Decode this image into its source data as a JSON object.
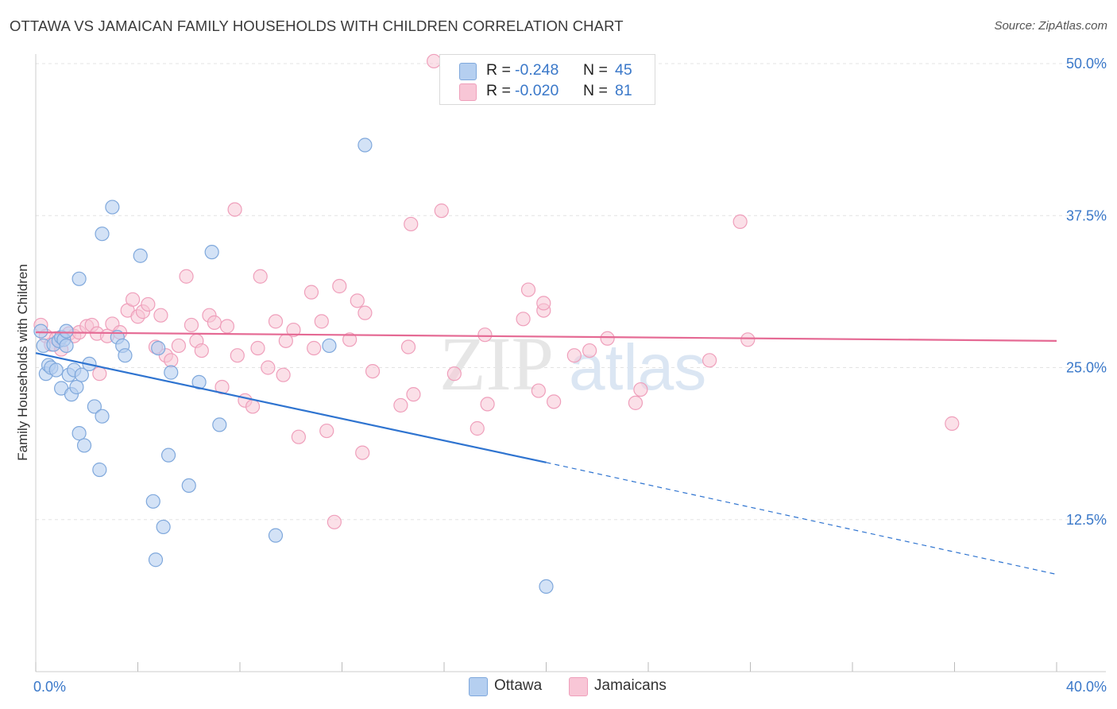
{
  "title": "OTTAWA VS JAMAICAN FAMILY HOUSEHOLDS WITH CHILDREN CORRELATION CHART",
  "source": "Source: ZipAtlas.com",
  "watermark": {
    "zip": "ZIP",
    "atlas": "atlas"
  },
  "legend_top": {
    "rows": [
      {
        "r_label": "R =",
        "r_value": "-0.248",
        "n_label": "N =",
        "n_value": "45"
      },
      {
        "r_label": "R =",
        "r_value": "-0.020",
        "n_label": "N =",
        "n_value": "81"
      }
    ]
  },
  "legend_bottom": {
    "items": [
      {
        "label": "Ottawa"
      },
      {
        "label": "Jamaicans"
      }
    ]
  },
  "colors": {
    "ottawa_fill": "#b5cff0",
    "ottawa_stroke": "#7fa8dc",
    "ottawa_line": "#2f74d0",
    "jamaican_fill": "#f8c6d6",
    "jamaican_stroke": "#ef9fbb",
    "jamaican_line": "#e56a94",
    "axis_text": "#3a78c9",
    "grid": "#e3e3e3"
  },
  "chart_data": {
    "type": "scatter",
    "title": "OTTAWA VS JAMAICAN FAMILY HOUSEHOLDS WITH CHILDREN CORRELATION CHART",
    "xlabel": "",
    "ylabel": "Family Households with Children",
    "xlim": [
      0,
      40
    ],
    "ylim": [
      0,
      50
    ],
    "x_tick_labels": [
      "0.0%",
      "40.0%"
    ],
    "y_ticks": [
      12.5,
      25.0,
      37.5,
      50.0
    ],
    "y_tick_labels": [
      "12.5%",
      "25.0%",
      "37.5%",
      "50.0%"
    ],
    "grid": true,
    "legend_position": "top-center",
    "series": [
      {
        "name": "Ottawa",
        "R": -0.248,
        "N": 45,
        "trend": {
          "x0": 0,
          "y0": 26.2,
          "x1": 20.0,
          "y1": 17.2,
          "dashed_to_x": 40,
          "dashed_to_y": 8.0
        },
        "points": [
          [
            0.2,
            28.0
          ],
          [
            0.3,
            26.8
          ],
          [
            0.4,
            24.5
          ],
          [
            0.5,
            25.2
          ],
          [
            0.6,
            25.0
          ],
          [
            0.7,
            26.9
          ],
          [
            0.8,
            24.8
          ],
          [
            0.9,
            27.2
          ],
          [
            1.0,
            23.3
          ],
          [
            1.0,
            27.5
          ],
          [
            1.1,
            27.3
          ],
          [
            1.2,
            28.0
          ],
          [
            1.2,
            26.8
          ],
          [
            1.3,
            24.4
          ],
          [
            1.4,
            22.8
          ],
          [
            1.5,
            24.8
          ],
          [
            1.6,
            23.4
          ],
          [
            1.7,
            19.6
          ],
          [
            1.8,
            24.4
          ],
          [
            1.9,
            18.6
          ],
          [
            2.1,
            25.3
          ],
          [
            2.3,
            21.8
          ],
          [
            2.5,
            16.6
          ],
          [
            2.6,
            21.0
          ],
          [
            1.7,
            32.3
          ],
          [
            2.6,
            36.0
          ],
          [
            3.0,
            38.2
          ],
          [
            3.2,
            27.5
          ],
          [
            3.4,
            26.8
          ],
          [
            3.5,
            26.0
          ],
          [
            4.1,
            34.2
          ],
          [
            4.6,
            14.0
          ],
          [
            4.7,
            9.2
          ],
          [
            4.8,
            26.6
          ],
          [
            5.0,
            11.9
          ],
          [
            5.2,
            17.8
          ],
          [
            5.3,
            24.6
          ],
          [
            6.0,
            15.3
          ],
          [
            6.4,
            23.8
          ],
          [
            6.9,
            34.5
          ],
          [
            7.2,
            20.3
          ],
          [
            9.4,
            11.2
          ],
          [
            11.5,
            26.8
          ],
          [
            12.9,
            43.3
          ],
          [
            20.0,
            7.0
          ]
        ]
      },
      {
        "name": "Jamaicans",
        "R": -0.02,
        "N": 81,
        "trend": {
          "x0": 0,
          "y0": 27.9,
          "x1": 40,
          "y1": 27.2
        },
        "points": [
          [
            0.2,
            28.5
          ],
          [
            0.4,
            27.6
          ],
          [
            0.6,
            26.9
          ],
          [
            0.8,
            27.4
          ],
          [
            1.0,
            26.5
          ],
          [
            1.3,
            27.8
          ],
          [
            1.5,
            27.6
          ],
          [
            1.7,
            27.9
          ],
          [
            2.0,
            28.4
          ],
          [
            2.2,
            28.5
          ],
          [
            2.4,
            27.8
          ],
          [
            2.5,
            24.5
          ],
          [
            2.8,
            27.6
          ],
          [
            3.0,
            28.6
          ],
          [
            3.3,
            27.9
          ],
          [
            3.6,
            29.7
          ],
          [
            3.8,
            30.6
          ],
          [
            4.0,
            29.2
          ],
          [
            4.2,
            29.6
          ],
          [
            4.4,
            30.2
          ],
          [
            4.7,
            26.7
          ],
          [
            4.9,
            29.3
          ],
          [
            5.1,
            26.0
          ],
          [
            5.3,
            25.6
          ],
          [
            5.6,
            26.8
          ],
          [
            5.9,
            32.5
          ],
          [
            6.1,
            28.5
          ],
          [
            6.3,
            27.2
          ],
          [
            6.5,
            26.4
          ],
          [
            6.8,
            29.3
          ],
          [
            7.0,
            28.7
          ],
          [
            7.3,
            23.4
          ],
          [
            7.5,
            28.4
          ],
          [
            7.8,
            38.0
          ],
          [
            7.9,
            26.0
          ],
          [
            8.2,
            22.3
          ],
          [
            8.5,
            21.8
          ],
          [
            8.7,
            26.6
          ],
          [
            8.8,
            32.5
          ],
          [
            9.1,
            25.0
          ],
          [
            9.4,
            28.8
          ],
          [
            9.7,
            24.4
          ],
          [
            9.8,
            27.2
          ],
          [
            10.1,
            28.1
          ],
          [
            10.3,
            19.3
          ],
          [
            10.8,
            31.2
          ],
          [
            10.9,
            26.6
          ],
          [
            11.2,
            28.8
          ],
          [
            11.4,
            19.8
          ],
          [
            11.7,
            12.3
          ],
          [
            11.9,
            31.7
          ],
          [
            12.3,
            27.3
          ],
          [
            12.6,
            30.5
          ],
          [
            12.9,
            29.5
          ],
          [
            12.8,
            18.0
          ],
          [
            13.2,
            24.7
          ],
          [
            14.3,
            21.9
          ],
          [
            14.6,
            26.7
          ],
          [
            14.8,
            22.8
          ],
          [
            14.7,
            36.8
          ],
          [
            15.6,
            50.2
          ],
          [
            15.9,
            37.9
          ],
          [
            16.4,
            24.5
          ],
          [
            17.3,
            20.0
          ],
          [
            17.6,
            27.7
          ],
          [
            17.7,
            22.0
          ],
          [
            19.1,
            29.0
          ],
          [
            19.3,
            31.4
          ],
          [
            19.7,
            23.1
          ],
          [
            19.9,
            29.7
          ],
          [
            19.9,
            30.3
          ],
          [
            20.3,
            22.2
          ],
          [
            21.7,
            26.4
          ],
          [
            22.4,
            27.4
          ],
          [
            23.5,
            22.1
          ],
          [
            23.7,
            23.2
          ],
          [
            26.4,
            25.6
          ],
          [
            27.6,
            37.0
          ],
          [
            27.9,
            27.3
          ],
          [
            35.9,
            20.4
          ],
          [
            21.1,
            26.0
          ]
        ]
      }
    ]
  }
}
